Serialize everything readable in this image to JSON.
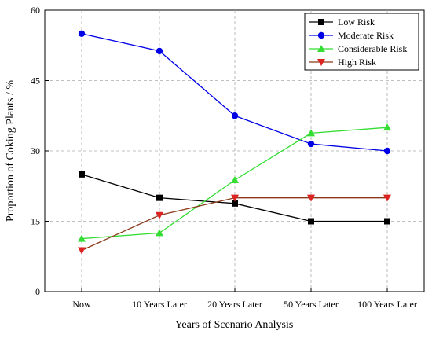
{
  "chart_data": {
    "type": "line",
    "title": "",
    "xlabel": "Years of Scenario Analysis",
    "ylabel": "Proportion of Coking Plants / %",
    "categories": [
      "Now",
      "10 Years Later",
      "20 Years Later",
      "50 Years Later",
      "100 Years Later"
    ],
    "ylim": [
      0,
      60
    ],
    "yticks": [
      0,
      15,
      30,
      45,
      60
    ],
    "grid": true,
    "legend_position": "top-right",
    "series": [
      {
        "name": "Low Risk",
        "color": "#000000",
        "marker": "square",
        "values": [
          25,
          20,
          18.8,
          15,
          15
        ]
      },
      {
        "name": "Moderate Risk",
        "color": "#0000e6",
        "marker": "circle",
        "values": [
          55,
          51.3,
          37.5,
          31.5,
          30
        ]
      },
      {
        "name": "Considerable Risk",
        "color": "#33dd33",
        "marker": "triangle-up",
        "values": [
          11.3,
          12.5,
          23.8,
          33.8,
          35
        ]
      },
      {
        "name": "High Risk",
        "color": "#dd2222",
        "line_color": "#8b3a1a",
        "marker": "triangle-down",
        "values": [
          8.8,
          16.3,
          20,
          20,
          20
        ]
      }
    ]
  }
}
